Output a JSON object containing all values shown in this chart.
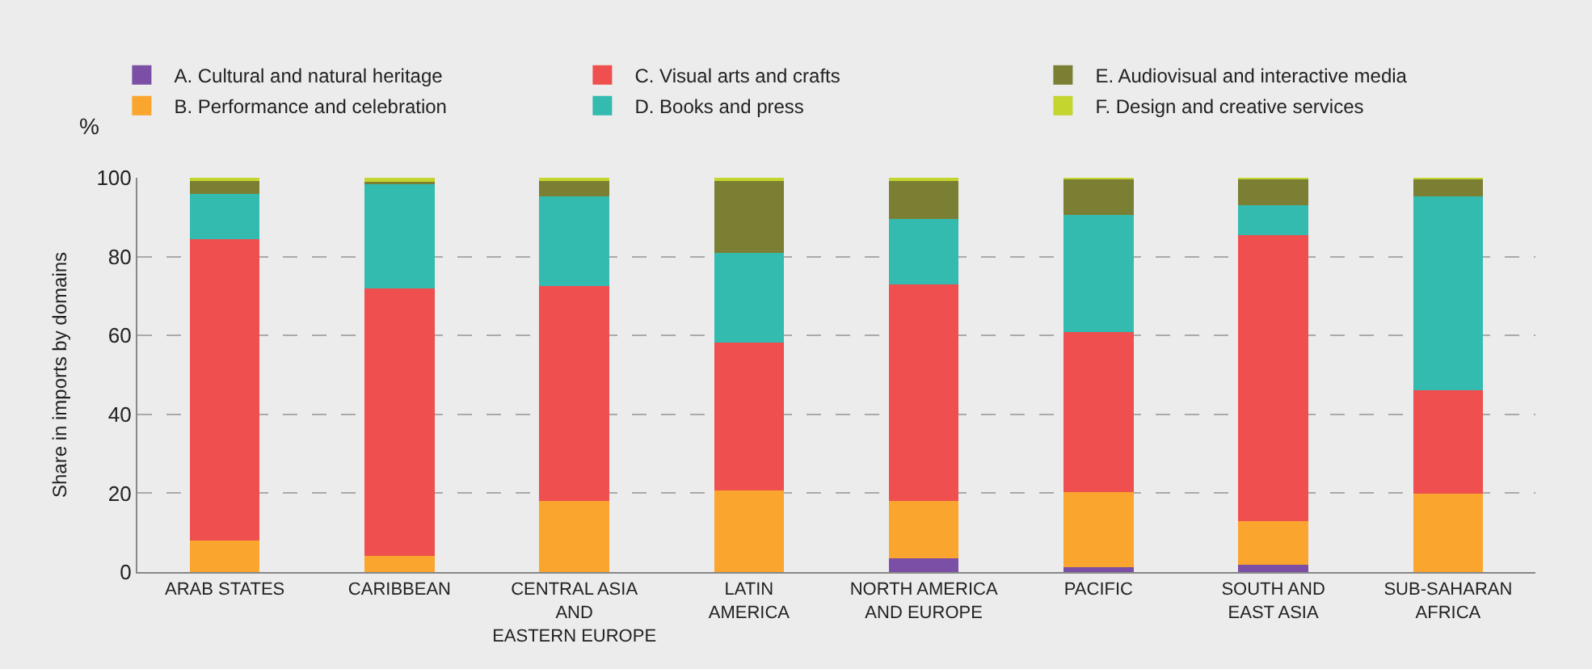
{
  "chart_data": {
    "type": "bar",
    "stacked": true,
    "ylabel": "Share in imports by domains",
    "annotations": [
      "%"
    ],
    "categories": [
      "ARAB STATES",
      "CARIBBEAN",
      "CENTRAL ASIA\nAND\nEASTERN EUROPE",
      "LATIN\nAMERICA",
      "NORTH AMERICA\nAND EUROPE",
      "PACIFIC",
      "SOUTH AND\nEAST ASIA",
      "SUB-SAHARAN\nAFRICA"
    ],
    "series": [
      {
        "name": "A. Cultural and natural heritage",
        "color": "#7b4fa5",
        "values": [
          0,
          0,
          0,
          0,
          3.4,
          1.2,
          1.9,
          0
        ]
      },
      {
        "name": "B. Performance and celebration",
        "color": "#f9a52e",
        "values": [
          8,
          4,
          18,
          20.6,
          14.6,
          19,
          11,
          19.8
        ]
      },
      {
        "name": "C. Visual arts and crafts",
        "color": "#ef4f4f",
        "values": [
          76.5,
          68,
          54.6,
          37.7,
          54.9,
          40.7,
          72.5,
          26.3
        ]
      },
      {
        "name": "D. Books and press",
        "color": "#33bbb0",
        "values": [
          11.5,
          26.5,
          22.7,
          22.7,
          16.7,
          29.6,
          7.7,
          49.2
        ]
      },
      {
        "name": "E. Audiovisual and interactive media",
        "color": "#7b7f33",
        "values": [
          3.3,
          0.5,
          4,
          18.3,
          9.7,
          9.1,
          6.5,
          4.4
        ]
      },
      {
        "name": "F. Design and creative services",
        "color": "#c3d52e",
        "values": [
          0.7,
          1,
          0.7,
          0.7,
          0.7,
          0.4,
          0.4,
          0.3
        ]
      }
    ],
    "ylim": [
      0,
      100
    ],
    "yticks": [
      0,
      20,
      40,
      60,
      80,
      100
    ],
    "grid": "y",
    "legend": "top"
  }
}
